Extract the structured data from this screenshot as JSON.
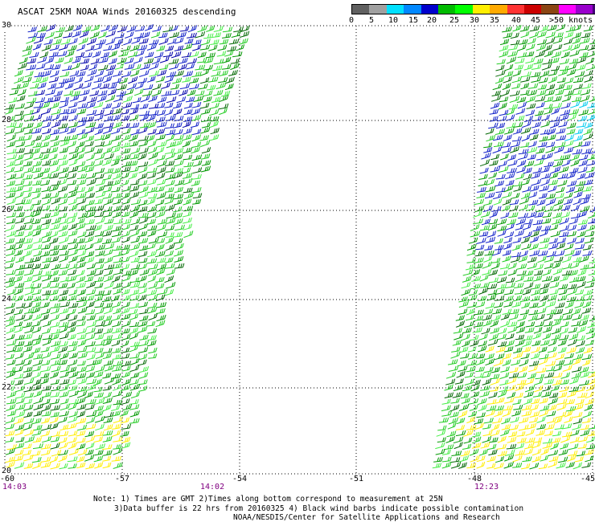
{
  "header": {
    "title": "ASCAT 25KM NOAA Winds 20160325 descending"
  },
  "legend": {
    "labels": [
      "0",
      "5",
      "10",
      "15",
      "20",
      "25",
      "30",
      "35",
      "40",
      "45",
      ">50 knots"
    ],
    "colors": [
      "#606060",
      "#a0a0a0",
      "#00e0ff",
      "#0088ff",
      "#0000cc",
      "#00bb00",
      "#00ff00",
      "#ffee00",
      "#ffaa00",
      "#ff3333",
      "#cc0000",
      "#8b4513",
      "#ff00ff",
      "#9900cc",
      "#440077"
    ]
  },
  "axes": {
    "lat_labels": [
      "30",
      "28",
      "26",
      "24",
      "22",
      "20"
    ],
    "lon_labels": [
      "-60",
      "-57",
      "-54",
      "-51",
      "-48",
      "-45"
    ],
    "time_labels": [
      "14:03",
      "14:02",
      "12:23"
    ]
  },
  "notes": {
    "line1": "Note: 1) Times are GMT 2)Times along bottom correspond to measurement at 25N",
    "line2": "3)Data buffer is 22 hrs from 20160325 4) Black wind barbs indicate possible contamination",
    "line3": "NOAA/NESDIS/Center for Satellite Applications and Research"
  }
}
